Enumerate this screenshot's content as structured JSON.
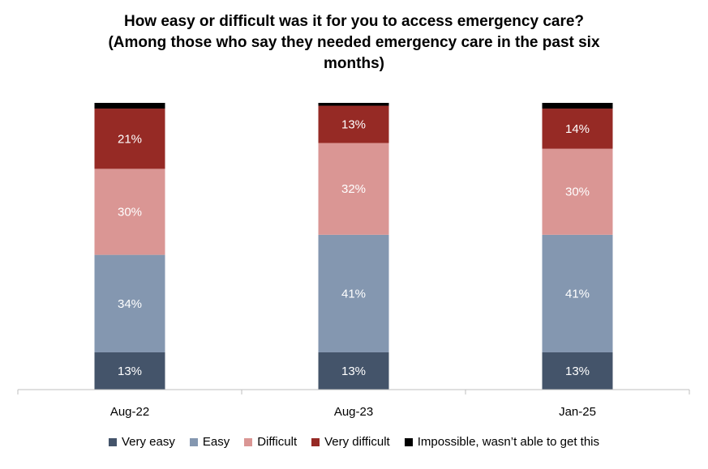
{
  "chart_data": {
    "type": "bar",
    "stacked": true,
    "title_lines": [
      "How easy or difficult was it for you to access emergency care?",
      "(Among those who say they needed emergency care in the past six",
      "months)"
    ],
    "categories": [
      "Aug-22",
      "Aug-23",
      "Jan-25"
    ],
    "series": [
      {
        "name": "Very easy",
        "color": "#44546A",
        "values": [
          13,
          13,
          13
        ],
        "labels": [
          "13%",
          "13%",
          "13%"
        ]
      },
      {
        "name": "Easy",
        "color": "#8497B0",
        "values": [
          34,
          41,
          41
        ],
        "labels": [
          "34%",
          "41%",
          "41%"
        ]
      },
      {
        "name": "Difficult",
        "color": "#DA9694",
        "values": [
          30,
          32,
          30
        ],
        "labels": [
          "30%",
          "32%",
          "30%"
        ]
      },
      {
        "name": "Very difficult",
        "color": "#962A25",
        "values": [
          21,
          13,
          14
        ],
        "labels": [
          "21%",
          "13%",
          "14%"
        ]
      },
      {
        "name": "Impossible, wasn’t able to get this",
        "color": "#000000",
        "values": [
          2,
          1,
          2
        ],
        "labels": [
          "",
          "",
          ""
        ]
      }
    ],
    "ylim": [
      0,
      100
    ],
    "legend_position": "bottom",
    "grid": false
  }
}
